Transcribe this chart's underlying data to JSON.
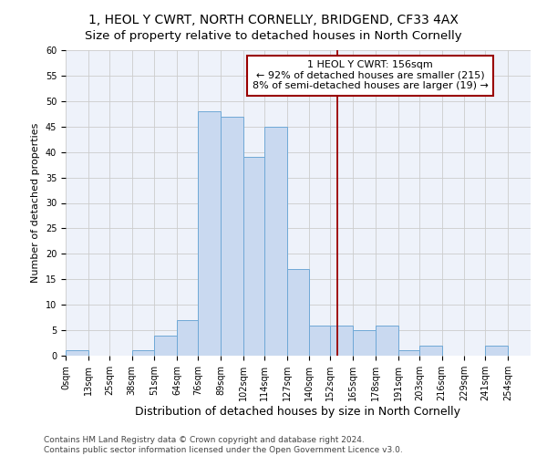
{
  "title": "1, HEOL Y CWRT, NORTH CORNELLY, BRIDGEND, CF33 4AX",
  "subtitle": "Size of property relative to detached houses in North Cornelly",
  "xlabel": "Distribution of detached houses by size in North Cornelly",
  "ylabel": "Number of detached properties",
  "bin_labels": [
    "0sqm",
    "13sqm",
    "25sqm",
    "38sqm",
    "51sqm",
    "64sqm",
    "76sqm",
    "89sqm",
    "102sqm",
    "114sqm",
    "127sqm",
    "140sqm",
    "152sqm",
    "165sqm",
    "178sqm",
    "191sqm",
    "203sqm",
    "216sqm",
    "229sqm",
    "241sqm",
    "254sqm"
  ],
  "bin_edges": [
    0,
    13,
    25,
    38,
    51,
    64,
    76,
    89,
    102,
    114,
    127,
    140,
    152,
    165,
    178,
    191,
    203,
    216,
    229,
    241,
    254
  ],
  "bar_heights": [
    1,
    0,
    0,
    1,
    4,
    7,
    48,
    47,
    39,
    45,
    17,
    6,
    6,
    5,
    6,
    1,
    2,
    0,
    0,
    2
  ],
  "bar_color": "#c9d9f0",
  "bar_edge_color": "#6fa8d6",
  "property_size": 156,
  "vline_color": "#990000",
  "annotation_title": "1 HEOL Y CWRT: 156sqm",
  "annotation_line1": "← 92% of detached houses are smaller (215)",
  "annotation_line2": "8% of semi-detached houses are larger (19) →",
  "annotation_box_color": "#990000",
  "ylim": [
    0,
    60
  ],
  "yticks": [
    0,
    5,
    10,
    15,
    20,
    25,
    30,
    35,
    40,
    45,
    50,
    55,
    60
  ],
  "grid_color": "#cccccc",
  "background_color": "#eef2fa",
  "footer_line1": "Contains HM Land Registry data © Crown copyright and database right 2024.",
  "footer_line2": "Contains public sector information licensed under the Open Government Licence v3.0.",
  "title_fontsize": 10,
  "xlabel_fontsize": 9,
  "ylabel_fontsize": 8,
  "tick_fontsize": 7,
  "annotation_fontsize": 8,
  "footer_fontsize": 6.5
}
